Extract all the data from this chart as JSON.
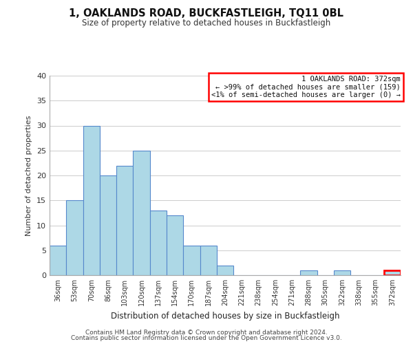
{
  "title": "1, OAKLANDS ROAD, BUCKFASTLEIGH, TQ11 0BL",
  "subtitle": "Size of property relative to detached houses in Buckfastleigh",
  "xlabel": "Distribution of detached houses by size in Buckfastleigh",
  "ylabel": "Number of detached properties",
  "bar_labels": [
    "36sqm",
    "53sqm",
    "70sqm",
    "86sqm",
    "103sqm",
    "120sqm",
    "137sqm",
    "154sqm",
    "170sqm",
    "187sqm",
    "204sqm",
    "221sqm",
    "238sqm",
    "254sqm",
    "271sqm",
    "288sqm",
    "305sqm",
    "322sqm",
    "338sqm",
    "355sqm",
    "372sqm"
  ],
  "bar_values": [
    6,
    15,
    30,
    20,
    22,
    25,
    13,
    12,
    6,
    6,
    2,
    0,
    0,
    0,
    0,
    1,
    0,
    1,
    0,
    0,
    1
  ],
  "bar_color": "#add8e6",
  "bar_edge_color": "#5588cc",
  "ylim": [
    0,
    40
  ],
  "yticks": [
    0,
    5,
    10,
    15,
    20,
    25,
    30,
    35,
    40
  ],
  "highlight_bar_index": 20,
  "highlight_bar_edge_color": "#ff0000",
  "annotation_box_text": "1 OAKLANDS ROAD: 372sqm\n← >99% of detached houses are smaller (159)\n<1% of semi-detached houses are larger (0) →",
  "annotation_box_edge_color": "#ff0000",
  "annotation_box_facecolor": "#ffffff",
  "footer_line1": "Contains HM Land Registry data © Crown copyright and database right 2024.",
  "footer_line2": "Contains public sector information licensed under the Open Government Licence v3.0.",
  "background_color": "#ffffff",
  "grid_color": "#cccccc"
}
